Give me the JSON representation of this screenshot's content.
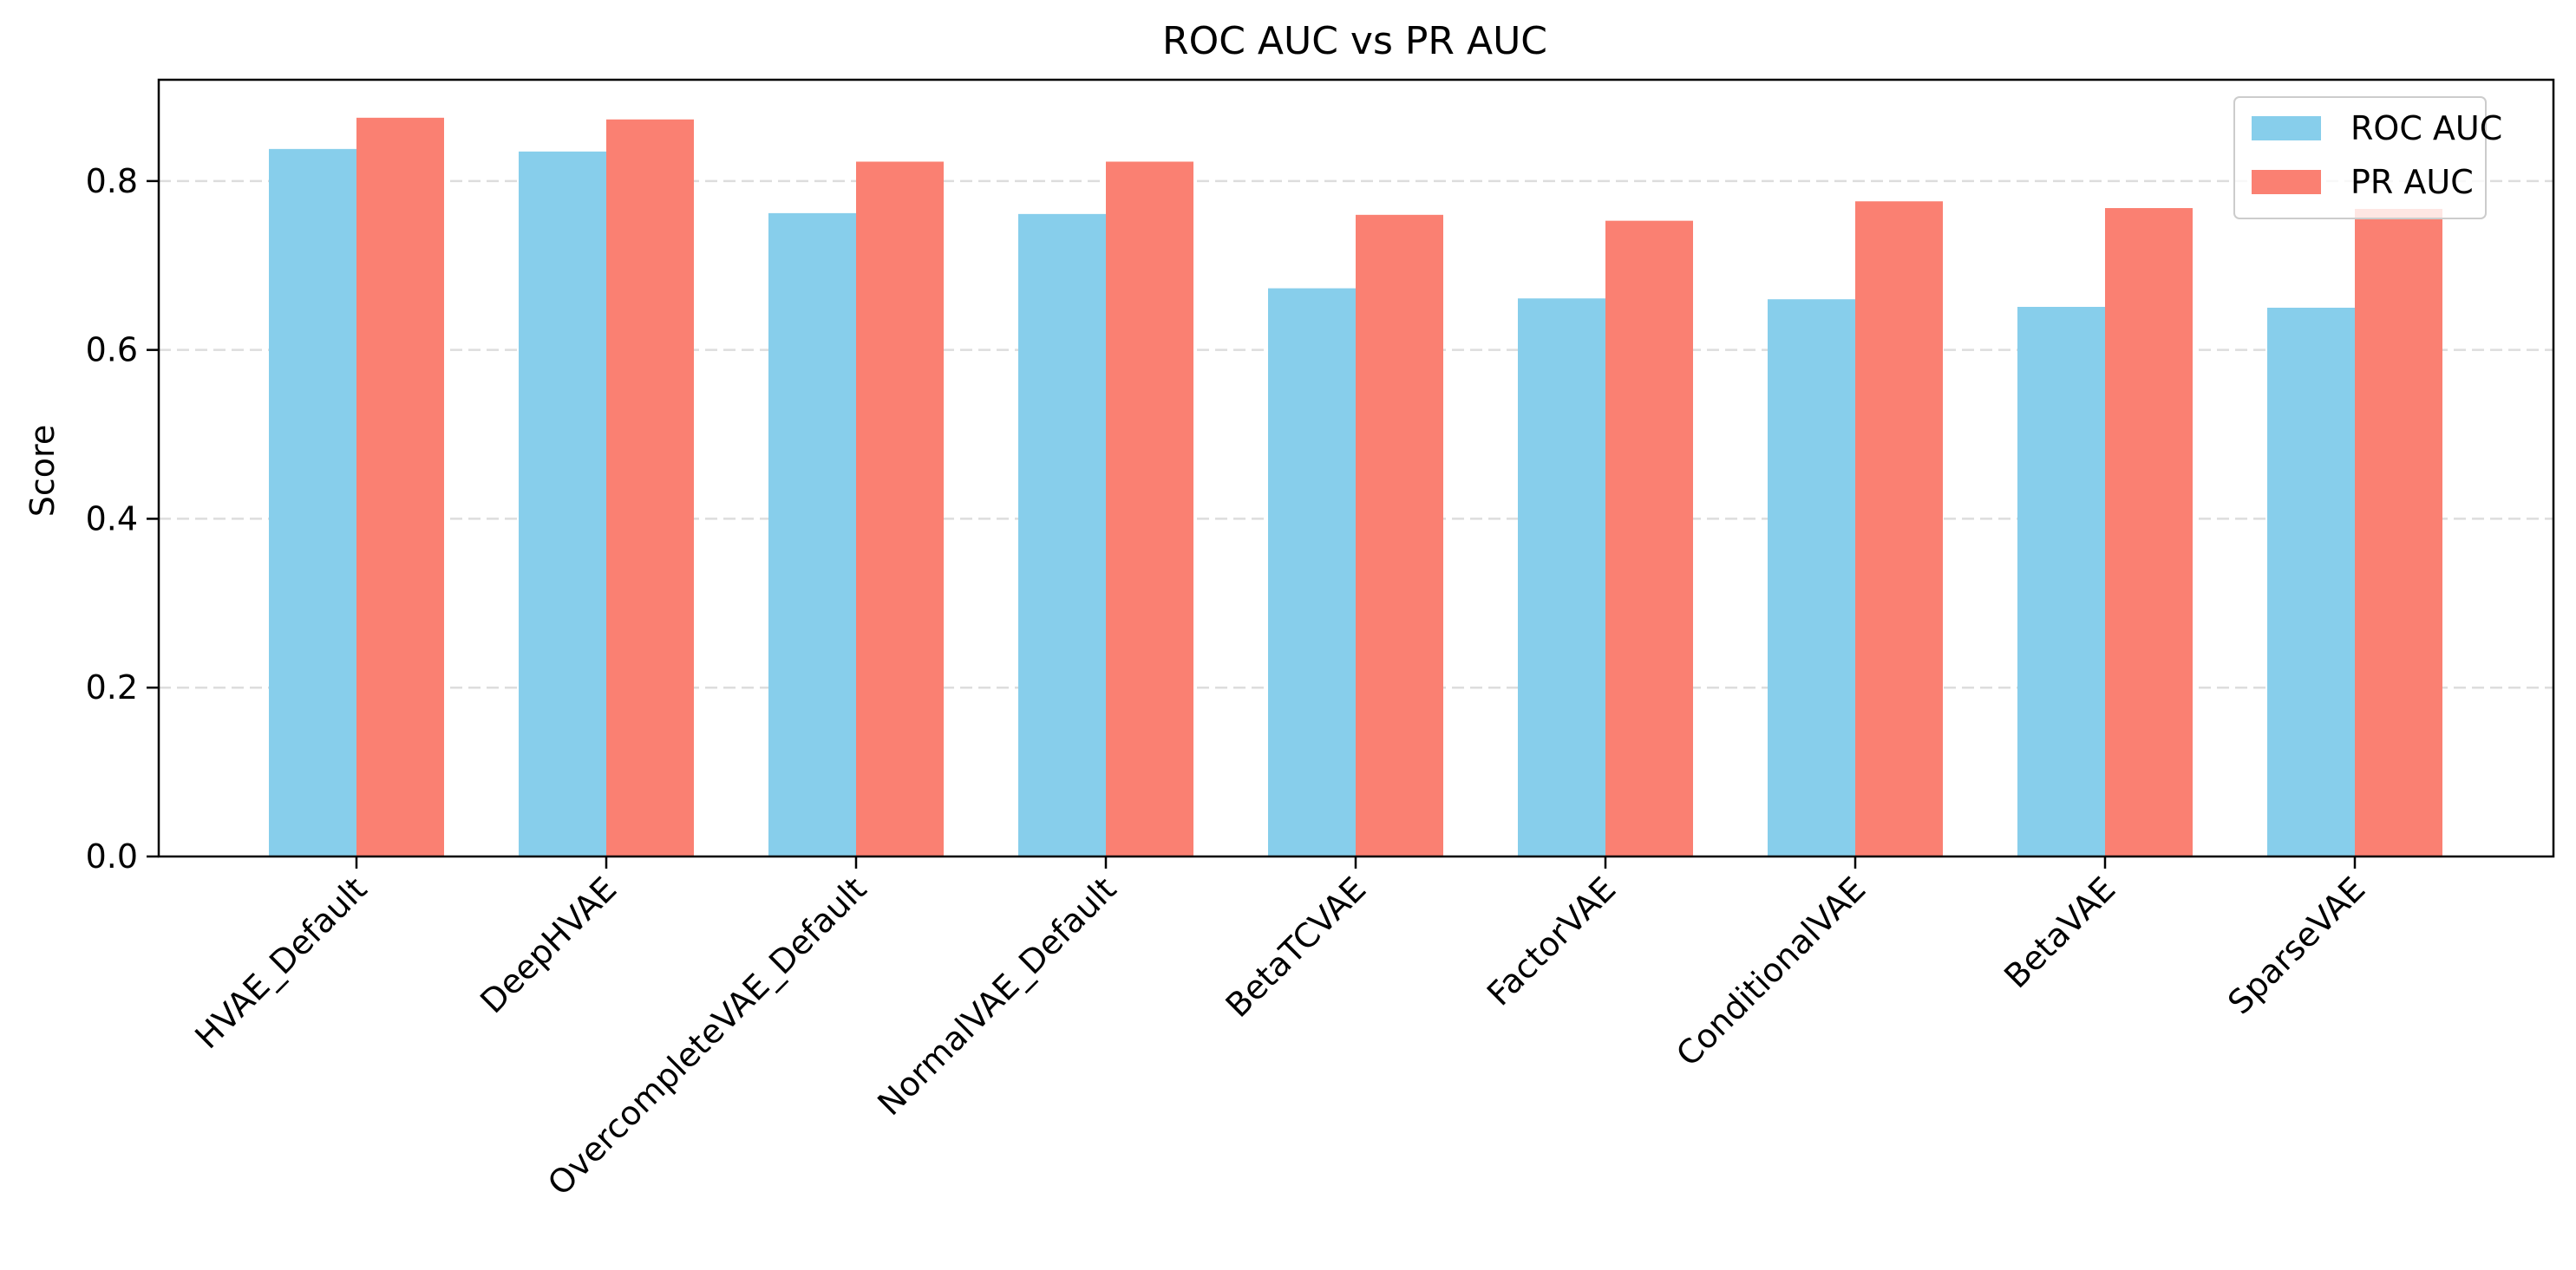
{
  "chart_data": {
    "type": "bar",
    "title": "ROC AUC vs PR AUC",
    "xlabel": "",
    "ylabel": "Score",
    "ylim": [
      0,
      0.92
    ],
    "yticks": [
      "0.0",
      "0.2",
      "0.4",
      "0.6",
      "0.8"
    ],
    "grid": "horizontal dashed",
    "legend_position": "top-right",
    "categories": [
      "HVAE_Default",
      "DeepHVAE",
      "OvercompleteVAE_Default",
      "NormalVAE_Default",
      "BetaTCVAE",
      "FactorVAE",
      "ConditionalVAE",
      "BetaVAE",
      "SparseVAE"
    ],
    "series": [
      {
        "name": "ROC AUC",
        "color": "#87CEEB",
        "values": [
          0.838,
          0.835,
          0.762,
          0.761,
          0.673,
          0.661,
          0.66,
          0.651,
          0.65
        ]
      },
      {
        "name": "PR AUC",
        "color": "#FA8072",
        "values": [
          0.875,
          0.873,
          0.823,
          0.823,
          0.76,
          0.753,
          0.776,
          0.768,
          0.767
        ]
      }
    ]
  }
}
